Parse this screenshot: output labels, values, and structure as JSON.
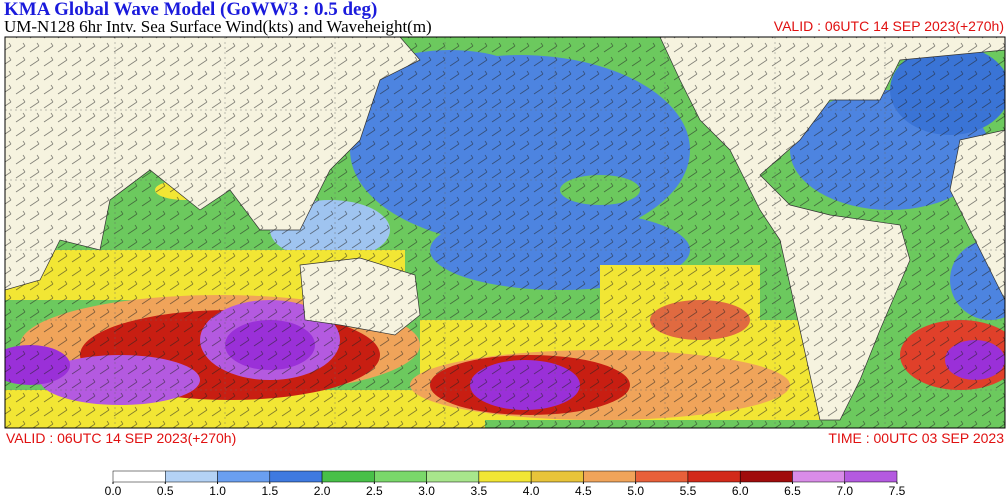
{
  "header": {
    "title": "KMA  Global Wave Model (GoWW3 : 0.5 deg)",
    "subtitle": "UM-N128  6hr Intv. Sea Surface Wind(kts) and Waveheight(m)",
    "valid": "VALID : 06UTC 14 SEP 2023(+270h)"
  },
  "footer": {
    "valid": "VALID : 06UTC 14 SEP 2023(+270h)",
    "time": "TIME : 00UTC 03 SEP 2023"
  },
  "colorbar": {
    "ticks": [
      {
        "value": 0,
        "label": "0.0"
      },
      0.5,
      {
        "value": 1,
        "label": "1.0"
      },
      1.5,
      {
        "value": 2,
        "label": "2.0"
      },
      2.5,
      {
        "value": 3,
        "label": "3.0"
      },
      3.5,
      {
        "value": 4,
        "label": "4.0"
      },
      4.5,
      {
        "value": 5,
        "label": "5.0"
      },
      5.5,
      {
        "value": 6,
        "label": "6.0"
      },
      6.5,
      {
        "value": 7,
        "label": "7.0"
      },
      7.5
    ],
    "colors": [
      "#ffffff",
      "#b4d2f5",
      "#6a9ff0",
      "#3f7ae0",
      "#48c048",
      "#7ad86a",
      "#a8e68c",
      "#f2e634",
      "#e8c43a",
      "#f0a45a",
      "#e8603a",
      "#d22a1a",
      "#a00c0c",
      "#d98ce8",
      "#b45ae0"
    ]
  }
}
